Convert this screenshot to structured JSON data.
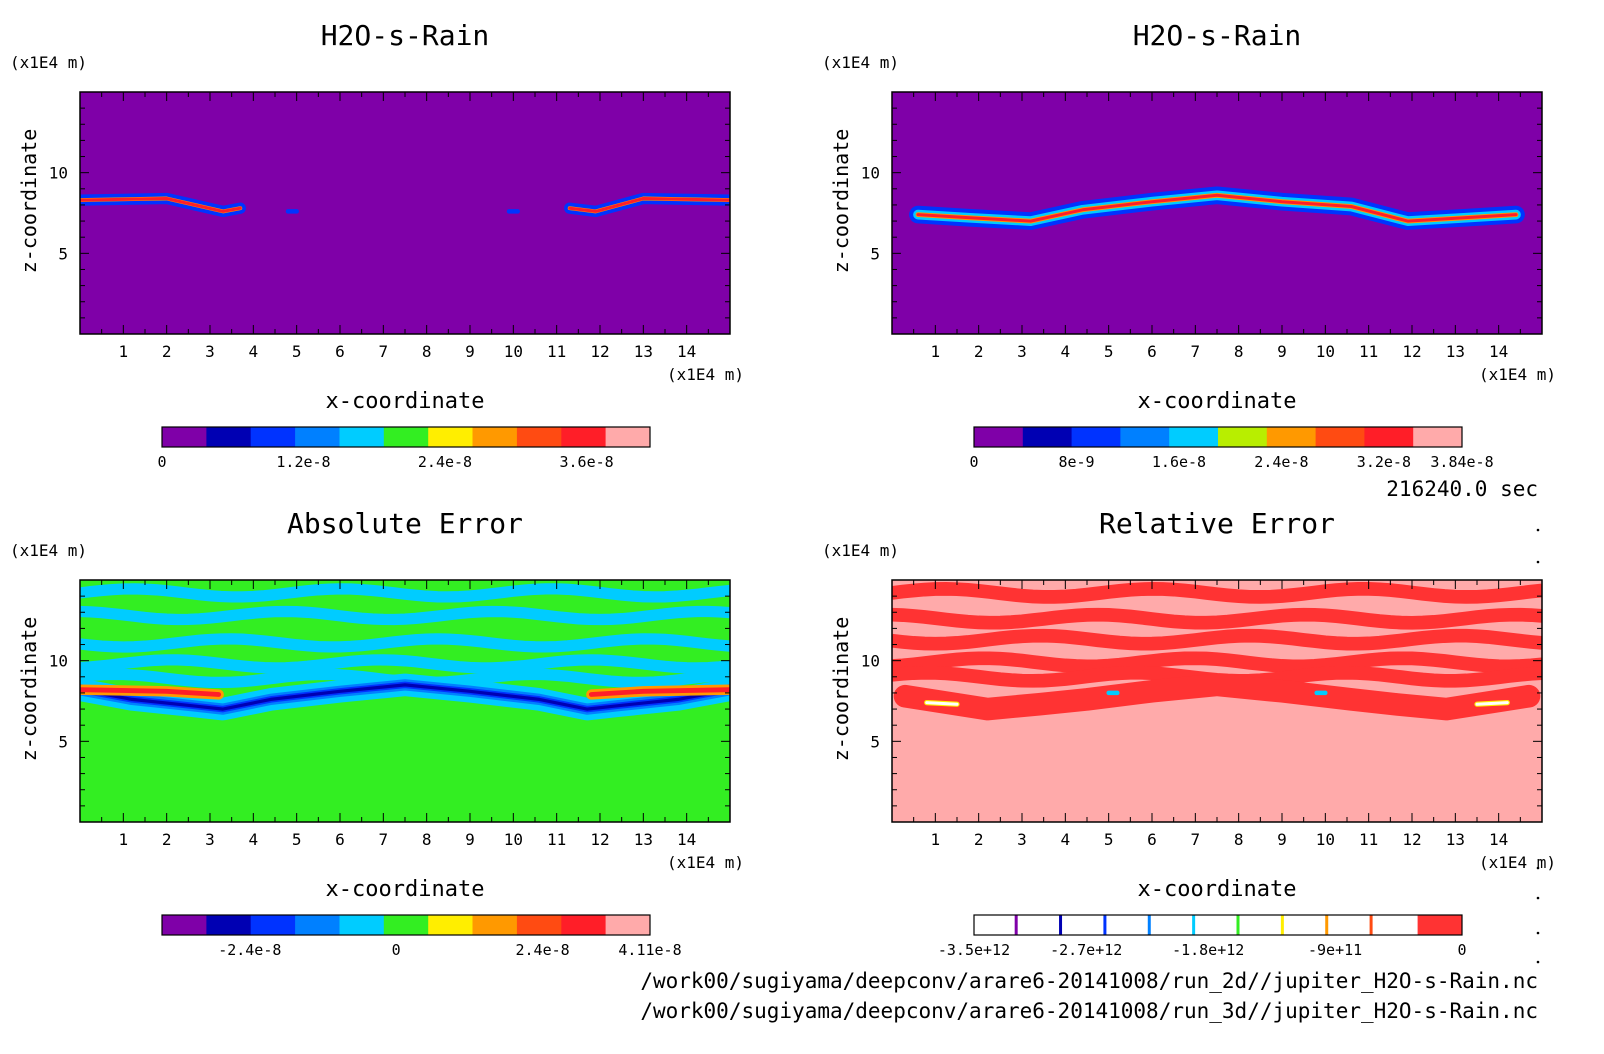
{
  "time_label": "216240.0 sec",
  "files": [
    "/work00/sugiyama/deepconv/arare6-20141008/run_2d//jupiter_H2O-s-Rain.nc",
    "/work00/sugiyama/deepconv/arare6-20141008/run_3d//jupiter_H2O-s-Rain.nc"
  ],
  "colors": {
    "purple": "#7f00a8",
    "navy": "#0000b3",
    "blue": "#0033ff",
    "azure": "#0080ff",
    "cyan": "#00ccff",
    "green": "#33ee22",
    "yellow": "#ffee00",
    "orange": "#ff9900",
    "redorange": "#ff4b12",
    "red": "#ff1e28",
    "pink": "#ffaaaa",
    "white": "#ffffff"
  },
  "chart_data": [
    {
      "type": "heatmap",
      "title": "H2O-s-Rain",
      "xlabel": "x-coordinate",
      "ylabel": "z-coordinate",
      "x_unit": "(x1E4 m)",
      "y_unit": "(x1E4 m)",
      "xlim": [
        0,
        15
      ],
      "ylim": [
        0,
        15
      ],
      "x_ticks": [
        "1",
        "2",
        "3",
        "4",
        "5",
        "6",
        "7",
        "8",
        "9",
        "10",
        "11",
        "12",
        "13",
        "14"
      ],
      "y_ticks": [
        "5",
        "10"
      ],
      "colorbar": {
        "labels": [
          "0",
          "1.2e-8",
          "2.4e-8",
          "3.6e-8"
        ],
        "label_positions": [
          0,
          0.29,
          0.58,
          0.87
        ],
        "colors": [
          "#7f00a8",
          "#0000b3",
          "#0033ff",
          "#0080ff",
          "#00ccff",
          "#33ee22",
          "#ffee00",
          "#ff9900",
          "#ff4b12",
          "#ff1e28",
          "#ffaaaa"
        ]
      },
      "background": "#7f00a8",
      "features": [
        {
          "points": [
            [
              0,
              8.3
            ],
            [
              2,
              8.4
            ],
            [
              3.3,
              7.6
            ],
            [
              3.7,
              7.8
            ]
          ],
          "layers": [
            [
              "#0033ff",
              0.35
            ],
            [
              "#ff9900",
              0.12
            ],
            [
              "#ff1e28",
              0.06
            ]
          ]
        },
        {
          "points": [
            [
              11.3,
              7.8
            ],
            [
              11.9,
              7.6
            ],
            [
              13,
              8.4
            ],
            [
              15,
              8.3
            ]
          ],
          "layers": [
            [
              "#0033ff",
              0.35
            ],
            [
              "#ff9900",
              0.12
            ],
            [
              "#ff1e28",
              0.06
            ]
          ]
        },
        {
          "points": [
            [
              4.8,
              7.6
            ],
            [
              5.0,
              7.6
            ]
          ],
          "layers": [
            [
              "#0033ff",
              0.14
            ]
          ]
        },
        {
          "points": [
            [
              9.9,
              7.6
            ],
            [
              10.1,
              7.6
            ]
          ],
          "layers": [
            [
              "#0033ff",
              0.14
            ]
          ]
        }
      ]
    },
    {
      "type": "heatmap",
      "title": "H2O-s-Rain",
      "xlabel": "x-coordinate",
      "ylabel": "z-coordinate",
      "x_unit": "(x1E4 m)",
      "y_unit": "(x1E4 m)",
      "xlim": [
        0,
        15
      ],
      "ylim": [
        0,
        15
      ],
      "x_ticks": [
        "1",
        "2",
        "3",
        "4",
        "5",
        "6",
        "7",
        "8",
        "9",
        "10",
        "11",
        "12",
        "13",
        "14"
      ],
      "y_ticks": [
        "5",
        "10"
      ],
      "colorbar": {
        "labels": [
          "0",
          "8e-9",
          "1.6e-8",
          "2.4e-8",
          "3.2e-8",
          "3.84e-8"
        ],
        "label_positions": [
          0,
          0.21,
          0.42,
          0.63,
          0.84,
          1.0
        ],
        "colors": [
          "#7f00a8",
          "#0000b3",
          "#0033ff",
          "#0080ff",
          "#00ccff",
          "#b8ee00",
          "#ff9900",
          "#ff4b12",
          "#ff1e28",
          "#ffaaaa"
        ]
      },
      "background": "#7f00a8",
      "features": [
        {
          "points": [
            [
              0.6,
              7.4
            ],
            [
              1.8,
              7.2
            ],
            [
              3.2,
              7.0
            ],
            [
              4.4,
              7.7
            ],
            [
              6,
              8.2
            ],
            [
              7.5,
              8.6
            ],
            [
              9,
              8.2
            ],
            [
              10.6,
              7.9
            ],
            [
              11.9,
              7.0
            ],
            [
              13.2,
              7.2
            ],
            [
              14.4,
              7.4
            ]
          ],
          "layers": [
            [
              "#0033ff",
              0.55
            ],
            [
              "#00ccff",
              0.3
            ],
            [
              "#ff9900",
              0.15
            ],
            [
              "#ff1e28",
              0.07
            ]
          ]
        }
      ]
    },
    {
      "type": "heatmap",
      "title": "Absolute Error",
      "xlabel": "x-coordinate",
      "ylabel": "z-coordinate",
      "x_unit": "(x1E4 m)",
      "y_unit": "(x1E4 m)",
      "xlim": [
        0,
        15
      ],
      "ylim": [
        0,
        15
      ],
      "x_ticks": [
        "1",
        "2",
        "3",
        "4",
        "5",
        "6",
        "7",
        "8",
        "9",
        "10",
        "11",
        "12",
        "13",
        "14"
      ],
      "y_ticks": [
        "5",
        "10"
      ],
      "colorbar": {
        "labels": [
          "-2.4e-8",
          "0",
          "2.4e-8",
          "4.11e-8"
        ],
        "label_positions": [
          0.18,
          0.48,
          0.78,
          1.0
        ],
        "colors": [
          "#7f00a8",
          "#0000b3",
          "#0033ff",
          "#0080ff",
          "#00ccff",
          "#33ee22",
          "#ffee00",
          "#ff9900",
          "#ff4b12",
          "#ff1e28",
          "#ffaaaa"
        ]
      },
      "background": "#33ee22",
      "bands": {
        "color": "#00ccff",
        "z": [
          14.2,
          12.8,
          11.1,
          9.8,
          8.9
        ],
        "width": 0.7
      },
      "features": [
        {
          "points": [
            [
              0,
              8.2
            ],
            [
              1.2,
              7.6
            ],
            [
              2.6,
              7.2
            ],
            [
              3.3,
              7.0
            ],
            [
              4.4,
              7.6
            ],
            [
              6,
              8.1
            ],
            [
              7.5,
              8.5
            ],
            [
              9,
              8.1
            ],
            [
              10.6,
              7.6
            ],
            [
              11.7,
              7.0
            ],
            [
              12.4,
              7.2
            ],
            [
              13.8,
              7.6
            ],
            [
              15,
              8.2
            ]
          ],
          "layers": [
            [
              "#00ccff",
              0.7
            ],
            [
              "#0080ff",
              0.35
            ],
            [
              "#0033ff",
              0.2
            ],
            [
              "#0000b3",
              0.1
            ]
          ]
        },
        {
          "points": [
            [
              0,
              8.2
            ],
            [
              2,
              8.1
            ],
            [
              3.2,
              7.9
            ]
          ],
          "layers": [
            [
              "#ff9900",
              0.32
            ],
            [
              "#ff1e28",
              0.15
            ]
          ]
        },
        {
          "points": [
            [
              11.8,
              7.9
            ],
            [
              13,
              8.1
            ],
            [
              15,
              8.2
            ]
          ],
          "layers": [
            [
              "#ff9900",
              0.32
            ],
            [
              "#ff1e28",
              0.15
            ]
          ]
        }
      ]
    },
    {
      "type": "heatmap",
      "title": "Relative Error",
      "xlabel": "x-coordinate",
      "ylabel": "z-coordinate",
      "x_unit": "(x1E4 m)",
      "y_unit": "(x1E4 m)",
      "xlim": [
        0,
        15
      ],
      "ylim": [
        0,
        15
      ],
      "x_ticks": [
        "1",
        "2",
        "3",
        "4",
        "5",
        "6",
        "7",
        "8",
        "9",
        "10",
        "11",
        "12",
        "13",
        "14"
      ],
      "y_ticks": [
        "5",
        "10"
      ],
      "colorbar": {
        "labels": [
          "-3.5e+12",
          "-2.7e+12",
          "-1.8e+12",
          "-9e+11",
          "0"
        ],
        "label_positions": [
          0,
          0.23,
          0.48,
          0.74,
          1.0
        ],
        "colors": [
          "#ffffff",
          "#ffffff",
          "#ffffff",
          "#ffffff",
          "#ffffff",
          "#ffffff",
          "#ffffff",
          "#ffffff",
          "#ffffff",
          "#ffffff",
          "#ff3333"
        ],
        "line_colors": [
          "#7f00a8",
          "#0000b3",
          "#0033ff",
          "#0080ff",
          "#00ccff",
          "#33ee22",
          "#ffee00",
          "#ff9900",
          "#ff4b12"
        ]
      },
      "background": "#ffaaaa",
      "bands": {
        "color": "#ff3333",
        "z": [
          14.2,
          12.6,
          11.3,
          9.9,
          9.0
        ],
        "width": 0.85
      },
      "features": [
        {
          "points": [
            [
              0.3,
              7.8
            ],
            [
              2.2,
              7.0
            ],
            [
              3.4,
              7.3
            ],
            [
              4.5,
              7.6
            ],
            [
              6,
              8.1
            ],
            [
              7.5,
              8.5
            ],
            [
              9,
              8.1
            ],
            [
              10.6,
              7.6
            ],
            [
              11.6,
              7.3
            ],
            [
              12.8,
              7.0
            ],
            [
              14.7,
              7.8
            ]
          ],
          "layers": [
            [
              "#ff3333",
              0.7
            ]
          ]
        },
        {
          "points": [
            [
              0.8,
              7.4
            ],
            [
              1.5,
              7.3
            ]
          ],
          "layers": [
            [
              "#ffee00",
              0.16
            ],
            [
              "#ffffff",
              0.06
            ]
          ]
        },
        {
          "points": [
            [
              13.5,
              7.3
            ],
            [
              14.2,
              7.4
            ]
          ],
          "layers": [
            [
              "#ffee00",
              0.16
            ],
            [
              "#ffffff",
              0.06
            ]
          ]
        },
        {
          "points": [
            [
              5.0,
              8.0
            ],
            [
              5.2,
              8.0
            ]
          ],
          "layers": [
            [
              "#00ccff",
              0.14
            ]
          ]
        },
        {
          "points": [
            [
              9.8,
              8.0
            ],
            [
              10.0,
              8.0
            ]
          ],
          "layers": [
            [
              "#00ccff",
              0.14
            ]
          ]
        }
      ]
    }
  ]
}
